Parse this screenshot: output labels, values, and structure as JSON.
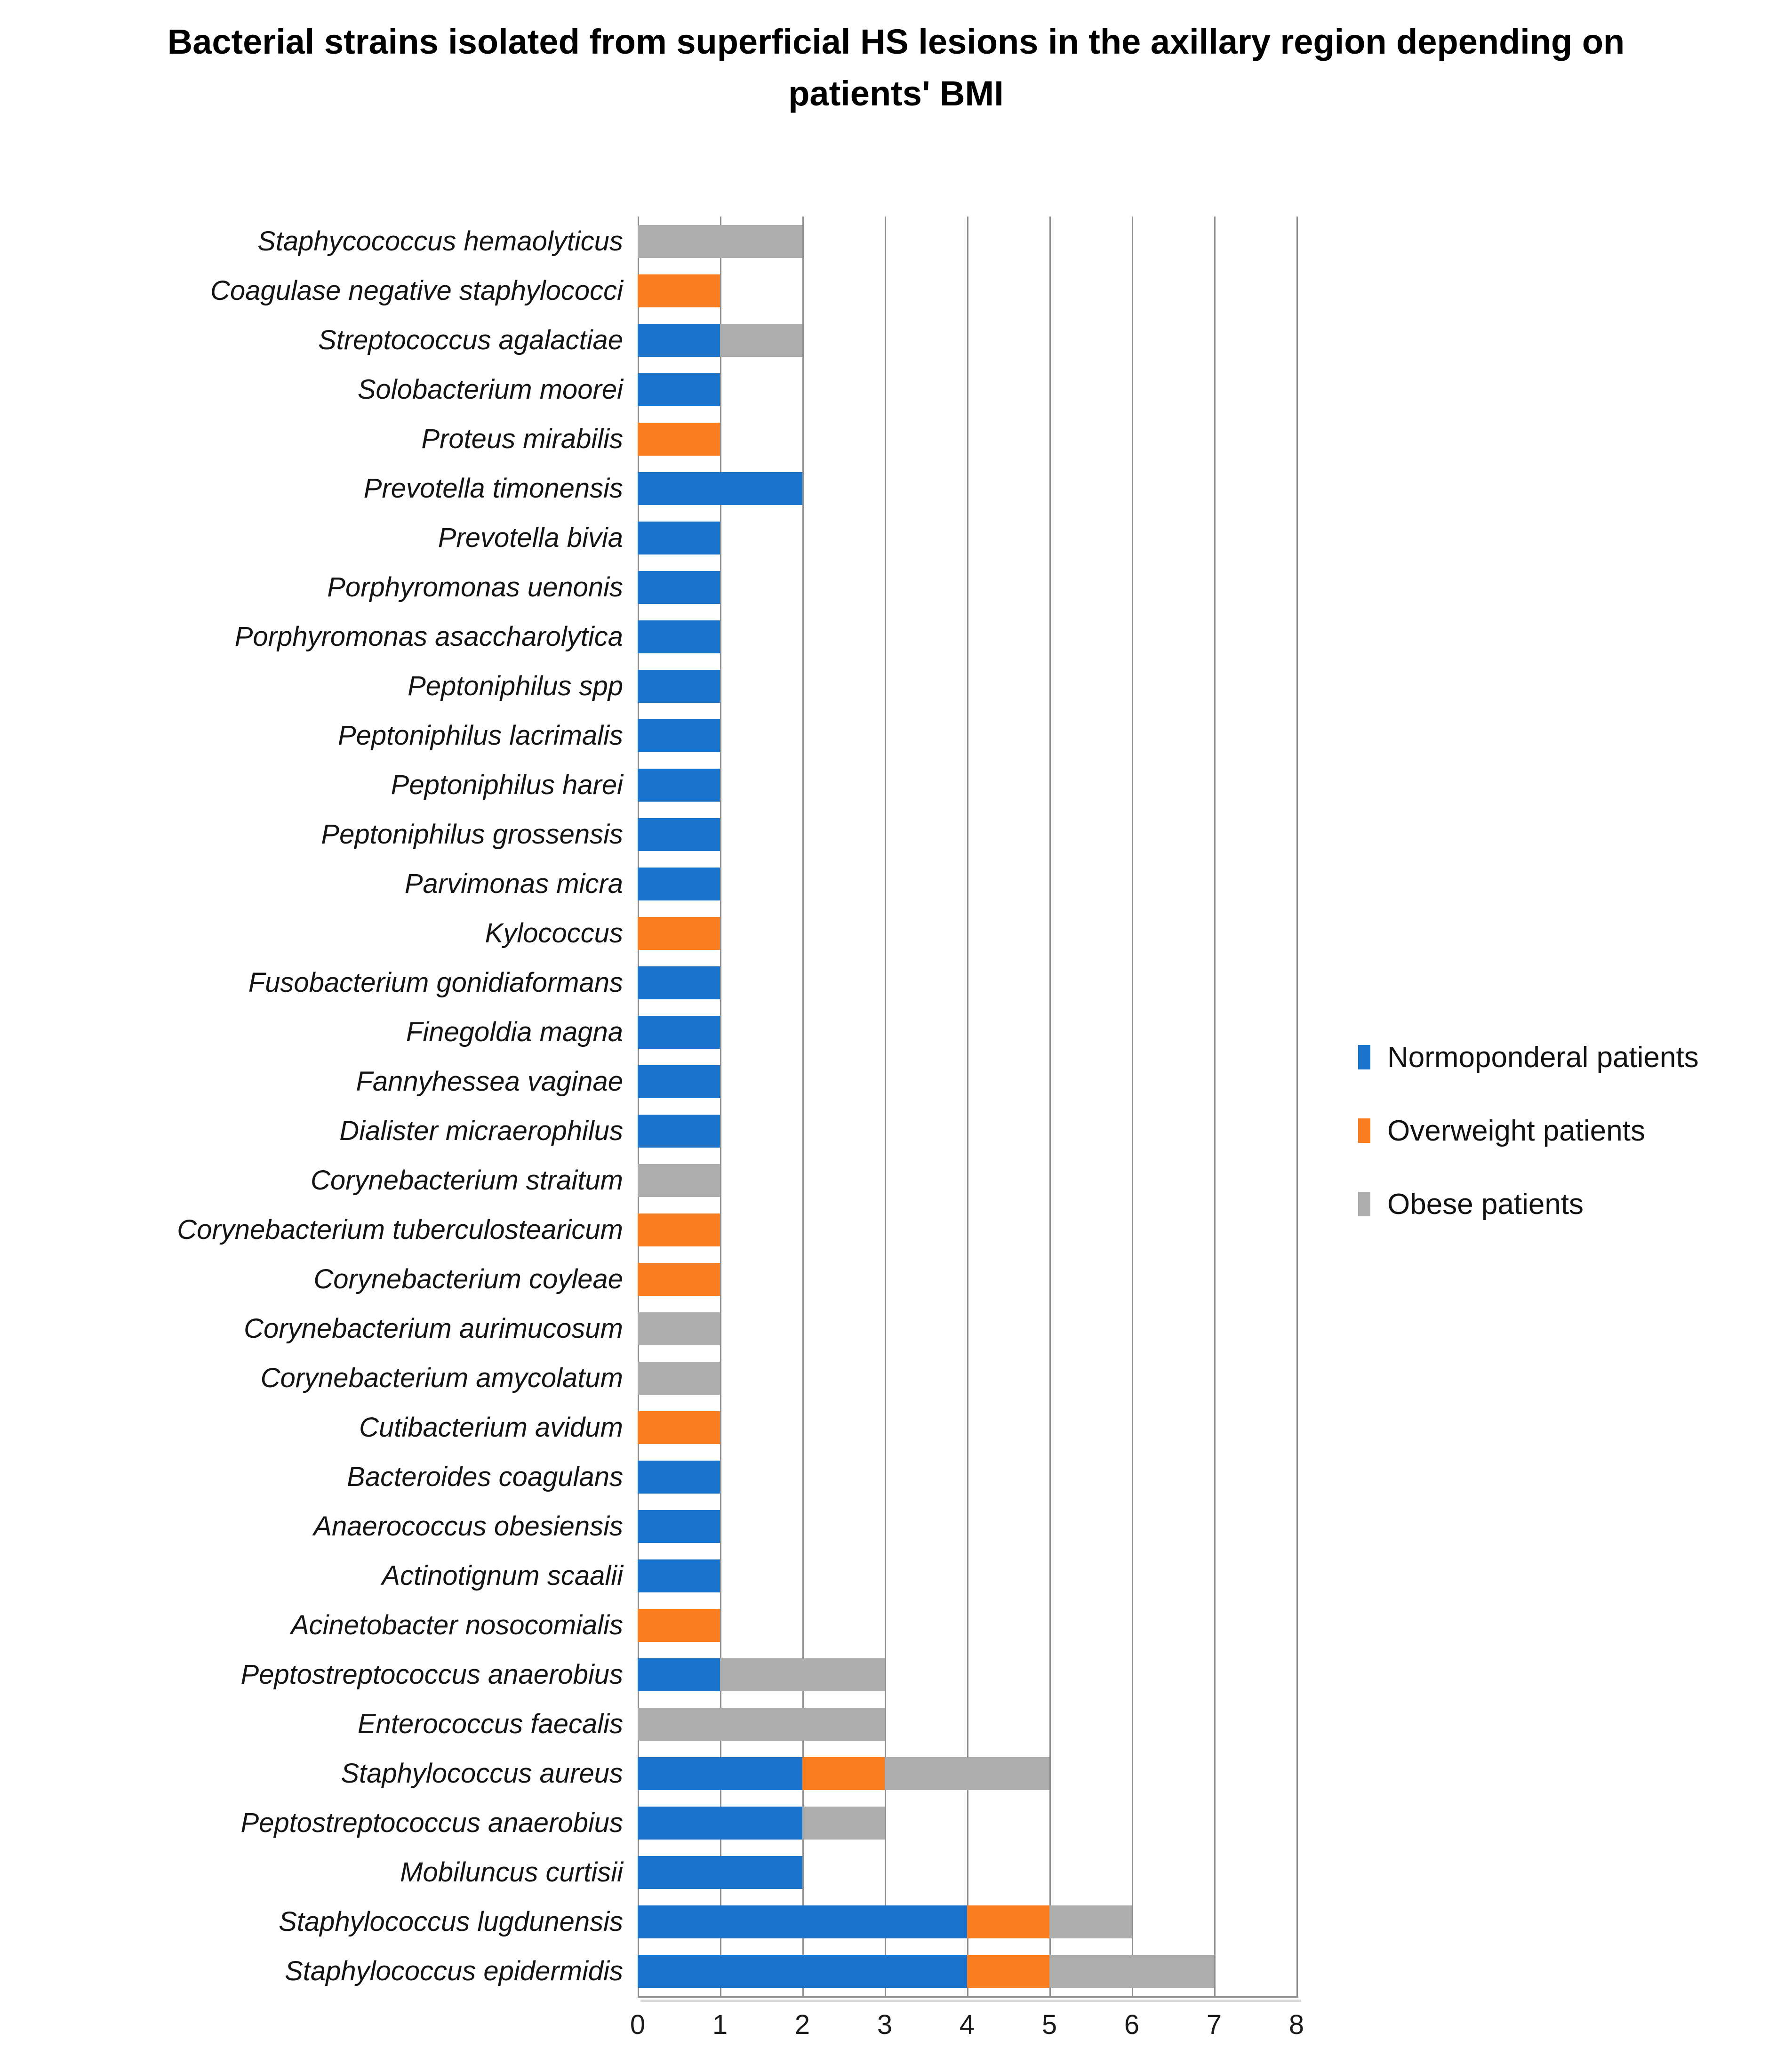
{
  "title": "Bacterial strains isolated from superficial HS lesions in the axillary region depending on patients' BMI",
  "chart_data": {
    "type": "bar",
    "orientation": "horizontal",
    "stacked": true,
    "title": "Bacterial strains isolated from superficial HS lesions in the axillary region depending on patients' BMI",
    "categories": [
      "Staphycococcus hemaolyticus",
      "Coagulase negative staphylococci",
      "Streptococcus agalactiae",
      "Solobacterium moorei",
      "Proteus mirabilis",
      "Prevotella timonensis",
      "Prevotella bivia",
      "Porphyromonas uenonis",
      "Porphyromonas asaccharolytica",
      "Peptoniphilus spp",
      "Peptoniphilus lacrimalis",
      "Peptoniphilus harei",
      "Peptoniphilus grossensis",
      "Parvimonas micra",
      "Kylococcus",
      "Fusobacterium gonidiaformans",
      "Finegoldia magna",
      "Fannyhessea vaginae",
      "Dialister micraerophilus",
      "Corynebacterium straitum",
      "Corynebacterium tuberculostearicum",
      "Corynebacterium coyleae",
      "Corynebacterium aurimucosum",
      "Corynebacterium amycolatum",
      "Cutibacterium avidum",
      "Bacteroides coagulans",
      "Anaerococcus obesiensis",
      "Actinotignum scaalii",
      "Acinetobacter nosocomialis",
      "Peptostreptococcus anaerobius",
      "Enterococcus faecalis",
      "Staphylococcus aureus",
      "Peptostreptococcus anaerobius",
      "Mobiluncus curtisii",
      "Staphylococcus lugdunensis",
      "Staphylococcus epidermidis"
    ],
    "series": [
      {
        "name": "Normoponderal patients",
        "color": "#1B74CC",
        "values": [
          0,
          0,
          1,
          1,
          0,
          2,
          1,
          1,
          1,
          1,
          1,
          1,
          1,
          1,
          0,
          1,
          1,
          1,
          1,
          0,
          0,
          0,
          0,
          0,
          0,
          1,
          1,
          1,
          0,
          1,
          0,
          2,
          2,
          2,
          4,
          4
        ]
      },
      {
        "name": "Overweight patients",
        "color": "#FA7D20",
        "values": [
          0,
          1,
          0,
          0,
          1,
          0,
          0,
          0,
          0,
          0,
          0,
          0,
          0,
          0,
          1,
          0,
          0,
          0,
          0,
          0,
          1,
          1,
          0,
          0,
          1,
          0,
          0,
          0,
          1,
          0,
          0,
          1,
          0,
          0,
          1,
          1
        ]
      },
      {
        "name": "Obese patients",
        "color": "#ADADAD",
        "values": [
          2,
          0,
          1,
          0,
          0,
          0,
          0,
          0,
          0,
          0,
          0,
          0,
          0,
          0,
          0,
          0,
          0,
          0,
          0,
          1,
          0,
          0,
          1,
          1,
          0,
          0,
          0,
          0,
          0,
          2,
          3,
          2,
          1,
          0,
          1,
          2
        ]
      }
    ],
    "xlabel": "",
    "ylabel": "",
    "xlim": [
      0,
      8
    ],
    "x_ticks": [
      0,
      1,
      2,
      3,
      4,
      5,
      6,
      7,
      8
    ],
    "grid": true,
    "legend_position": "right"
  }
}
